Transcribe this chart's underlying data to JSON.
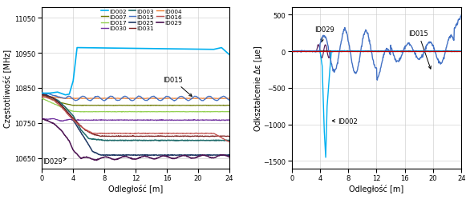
{
  "xlabel": "Odległość [m]",
  "ylabel_left": "Częstotliwość [MHz]",
  "ylabel_right": "Odkształcenie Δε [μe]",
  "xlim": [
    0,
    24
  ],
  "ylim_left": [
    10620,
    11080
  ],
  "ylim_right": [
    -1600,
    600
  ],
  "yticks_left": [
    10650,
    10750,
    10850,
    10950,
    11050
  ],
  "yticks_right": [
    -1500,
    -1000,
    -500,
    0,
    500
  ],
  "xticks": [
    0,
    4,
    8,
    12,
    16,
    20,
    24
  ],
  "colors": {
    "ID002": "#00b0f0",
    "ID007": "#6d7a00",
    "ID017": "#92d050",
    "ID030": "#7030a0",
    "ID003": "#1f6b6b",
    "ID015": "#4472c4",
    "ID025": "#1f3864",
    "ID031": "#7b2020",
    "ID004": "#ed7d31",
    "ID016": "#c0504d",
    "ID029": "#4a1050"
  },
  "bg_color": "#ffffff",
  "grid_color": "#c8c8c8"
}
